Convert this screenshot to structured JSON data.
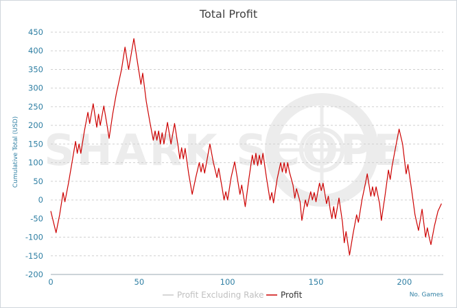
{
  "colors": {
    "profit": "#cc0000",
    "excluding_rake": "#c8c8c8",
    "axis_text": "#2f7fa3",
    "grid": "#cfcfcf",
    "watermark": "#ececec"
  },
  "watermark": "SHARK SCOPE",
  "chart_data": {
    "type": "line",
    "title": "Total Profit",
    "xlabel": "No. Games",
    "ylabel": "Cumulative Total (USD)",
    "xlim": [
      0,
      222
    ],
    "ylim": [
      -200,
      450
    ],
    "x_ticks": [
      "0",
      "50",
      "100",
      "150",
      "200"
    ],
    "y_ticks": [
      "450",
      "400",
      "350",
      "300",
      "250",
      "200",
      "150",
      "100",
      "50",
      "0",
      "-50",
      "-100",
      "-150",
      "-200"
    ],
    "grid": "horizontal dashed",
    "legend_position": "bottom",
    "series": [
      {
        "name": "Profit Excluding Rake",
        "values": []
      },
      {
        "name": "Profit",
        "points": [
          [
            0,
            -30
          ],
          [
            3,
            -88
          ],
          [
            5,
            -40
          ],
          [
            7,
            20
          ],
          [
            8,
            -5
          ],
          [
            10,
            45
          ],
          [
            12,
            100
          ],
          [
            14,
            157
          ],
          [
            15,
            125
          ],
          [
            16,
            150
          ],
          [
            17,
            125
          ],
          [
            19,
            185
          ],
          [
            21,
            235
          ],
          [
            22,
            205
          ],
          [
            24,
            258
          ],
          [
            26,
            195
          ],
          [
            27,
            230
          ],
          [
            28,
            200
          ],
          [
            30,
            252
          ],
          [
            32,
            195
          ],
          [
            33,
            165
          ],
          [
            35,
            230
          ],
          [
            37,
            283
          ],
          [
            40,
            350
          ],
          [
            42,
            410
          ],
          [
            44,
            350
          ],
          [
            47,
            433
          ],
          [
            49,
            370
          ],
          [
            51,
            310
          ],
          [
            52,
            340
          ],
          [
            54,
            265
          ],
          [
            56,
            210
          ],
          [
            58,
            160
          ],
          [
            59,
            185
          ],
          [
            60,
            160
          ],
          [
            61,
            185
          ],
          [
            62,
            150
          ],
          [
            63,
            180
          ],
          [
            64,
            150
          ],
          [
            66,
            208
          ],
          [
            68,
            150
          ],
          [
            70,
            205
          ],
          [
            72,
            145
          ],
          [
            73,
            110
          ],
          [
            74,
            140
          ],
          [
            75,
            110
          ],
          [
            76,
            138
          ],
          [
            78,
            70
          ],
          [
            80,
            15
          ],
          [
            82,
            60
          ],
          [
            84,
            100
          ],
          [
            85,
            75
          ],
          [
            86,
            98
          ],
          [
            87,
            72
          ],
          [
            90,
            150
          ],
          [
            92,
            100
          ],
          [
            94,
            60
          ],
          [
            95,
            85
          ],
          [
            97,
            30
          ],
          [
            98,
            0
          ],
          [
            99,
            22
          ],
          [
            100,
            0
          ],
          [
            102,
            60
          ],
          [
            104,
            102
          ],
          [
            107,
            15
          ],
          [
            108,
            40
          ],
          [
            110,
            -18
          ],
          [
            112,
            55
          ],
          [
            114,
            120
          ],
          [
            115,
            95
          ],
          [
            116,
            125
          ],
          [
            117,
            92
          ],
          [
            118,
            120
          ],
          [
            119,
            95
          ],
          [
            120,
            125
          ],
          [
            122,
            60
          ],
          [
            124,
            0
          ],
          [
            125,
            20
          ],
          [
            126,
            -8
          ],
          [
            128,
            55
          ],
          [
            130,
            100
          ],
          [
            131,
            75
          ],
          [
            132,
            100
          ],
          [
            133,
            72
          ],
          [
            134,
            100
          ],
          [
            135,
            75
          ],
          [
            137,
            40
          ],
          [
            138,
            5
          ],
          [
            139,
            30
          ],
          [
            141,
            -5
          ],
          [
            142,
            -55
          ],
          [
            144,
            0
          ],
          [
            145,
            -18
          ],
          [
            147,
            22
          ],
          [
            148,
            0
          ],
          [
            149,
            20
          ],
          [
            150,
            -5
          ],
          [
            152,
            45
          ],
          [
            153,
            25
          ],
          [
            154,
            45
          ],
          [
            156,
            -10
          ],
          [
            157,
            10
          ],
          [
            158,
            -25
          ],
          [
            159,
            -50
          ],
          [
            160,
            -18
          ],
          [
            161,
            -50
          ],
          [
            163,
            5
          ],
          [
            165,
            -60
          ],
          [
            166,
            -115
          ],
          [
            167,
            -85
          ],
          [
            169,
            -148
          ],
          [
            171,
            -90
          ],
          [
            173,
            -40
          ],
          [
            174,
            -60
          ],
          [
            176,
            0
          ],
          [
            178,
            45
          ],
          [
            179,
            70
          ],
          [
            181,
            10
          ],
          [
            182,
            35
          ],
          [
            183,
            10
          ],
          [
            184,
            35
          ],
          [
            186,
            -10
          ],
          [
            187,
            -55
          ],
          [
            189,
            10
          ],
          [
            191,
            80
          ],
          [
            192,
            55
          ],
          [
            193,
            90
          ],
          [
            195,
            140
          ],
          [
            197,
            190
          ],
          [
            199,
            150
          ],
          [
            201,
            70
          ],
          [
            202,
            95
          ],
          [
            204,
            30
          ],
          [
            206,
            -40
          ],
          [
            208,
            -82
          ],
          [
            210,
            -25
          ],
          [
            212,
            -100
          ],
          [
            213,
            -75
          ],
          [
            214,
            -100
          ],
          [
            215,
            -120
          ],
          [
            217,
            -70
          ],
          [
            219,
            -30
          ],
          [
            221,
            -10
          ]
        ]
      }
    ]
  }
}
